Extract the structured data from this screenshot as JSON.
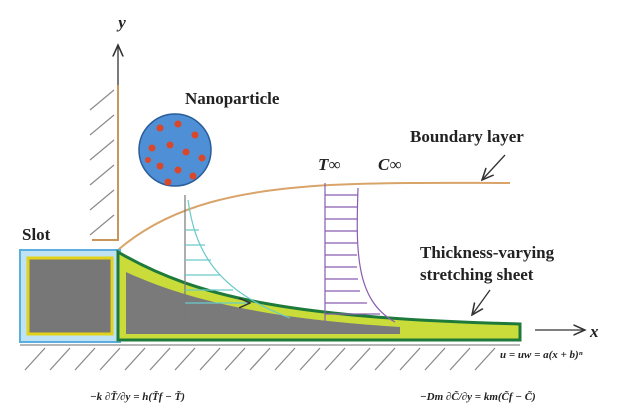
{
  "axes": {
    "y": "y",
    "x": "x"
  },
  "labels": {
    "nanoparticle": "Nanoparticle",
    "boundary_layer": "Boundary layer",
    "t_inf": "T∞",
    "c_inf": "C∞",
    "slot": "Slot",
    "sheet": [
      "Thickness-varying",
      "stretching sheet"
    ]
  },
  "equations": {
    "velocity": "u = uw = a(x + b)ⁿ",
    "heat": "−k ∂T̃/∂y = h(T̃f − T̃)",
    "mass": "−Dm ∂C̃/∂y = km(C̃f − C̃)"
  }
}
